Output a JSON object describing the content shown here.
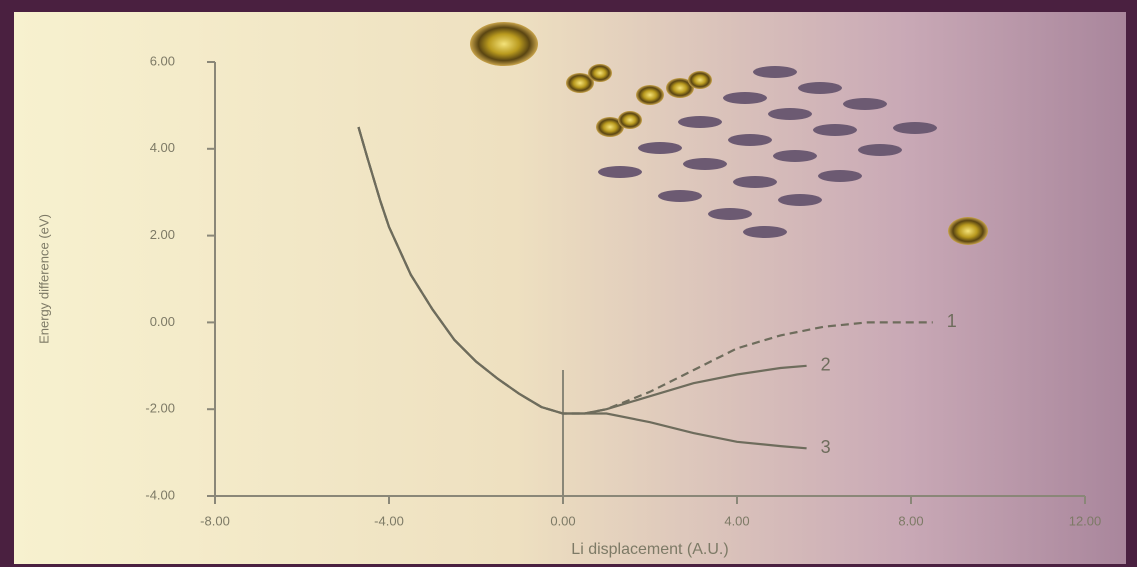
{
  "chart_data": {
    "type": "line",
    "x_label": "Li displacement (A.U.)",
    "y_label": "Energy difference (eV)",
    "xlim": [
      -8,
      12
    ],
    "ylim": [
      -4,
      6
    ],
    "xticks": [
      {
        "value": -8,
        "label": "-8.00"
      },
      {
        "value": -4,
        "label": "-4.00"
      },
      {
        "value": 0,
        "label": "0.00"
      },
      {
        "value": 4,
        "label": "4.00"
      },
      {
        "value": 8,
        "label": "8.00"
      },
      {
        "value": 12,
        "label": "12.00"
      }
    ],
    "yticks": [
      {
        "value": -4,
        "label": "-4.00"
      },
      {
        "value": -2,
        "label": "-2.00"
      },
      {
        "value": 0,
        "label": "0.00"
      },
      {
        "value": 2,
        "label": "2.00"
      },
      {
        "value": 4,
        "label": "4.00"
      },
      {
        "value": 6,
        "label": "6.00"
      }
    ],
    "series": [
      {
        "name": "1",
        "color": "#6e6c5c",
        "dashed": true,
        "x": [
          -4.7,
          -4.5,
          -4.2,
          -4,
          -3.5,
          -3,
          -2.5,
          -2,
          -1.5,
          -1,
          -0.5,
          0,
          0.5,
          1,
          2,
          3,
          4,
          5,
          6,
          7,
          8,
          8.5
        ],
        "values": [
          4.5,
          3.8,
          2.8,
          2.2,
          1.1,
          0.3,
          -0.4,
          -0.9,
          -1.3,
          -1.65,
          -1.95,
          -2.1,
          -2.1,
          -2.0,
          -1.6,
          -1.1,
          -0.6,
          -0.3,
          -0.1,
          0,
          0,
          0
        ]
      },
      {
        "name": "2",
        "color": "#6e6c5c",
        "dashed": false,
        "x": [
          -4.7,
          -4.5,
          -4.2,
          -4,
          -3.5,
          -3,
          -2.5,
          -2,
          -1.5,
          -1,
          -0.5,
          0,
          0.5,
          1,
          2,
          3,
          4,
          5,
          5.6
        ],
        "values": [
          4.5,
          3.8,
          2.8,
          2.2,
          1.1,
          0.3,
          -0.4,
          -0.9,
          -1.3,
          -1.65,
          -1.95,
          -2.1,
          -2.1,
          -2.0,
          -1.7,
          -1.4,
          -1.2,
          -1.05,
          -1.0
        ]
      },
      {
        "name": "3",
        "color": "#6e6c5c",
        "dashed": false,
        "x": [
          -4.7,
          -4.5,
          -4.2,
          -4,
          -3.5,
          -3,
          -2.5,
          -2,
          -1.5,
          -1,
          -0.5,
          0,
          0.5,
          1,
          2,
          3,
          4,
          5,
          5.6
        ],
        "values": [
          4.5,
          3.8,
          2.8,
          2.2,
          1.1,
          0.3,
          -0.4,
          -0.9,
          -1.3,
          -1.65,
          -1.95,
          -2.1,
          -2.1,
          -2.1,
          -2.3,
          -2.55,
          -2.75,
          -2.85,
          -2.9
        ]
      }
    ]
  }
}
